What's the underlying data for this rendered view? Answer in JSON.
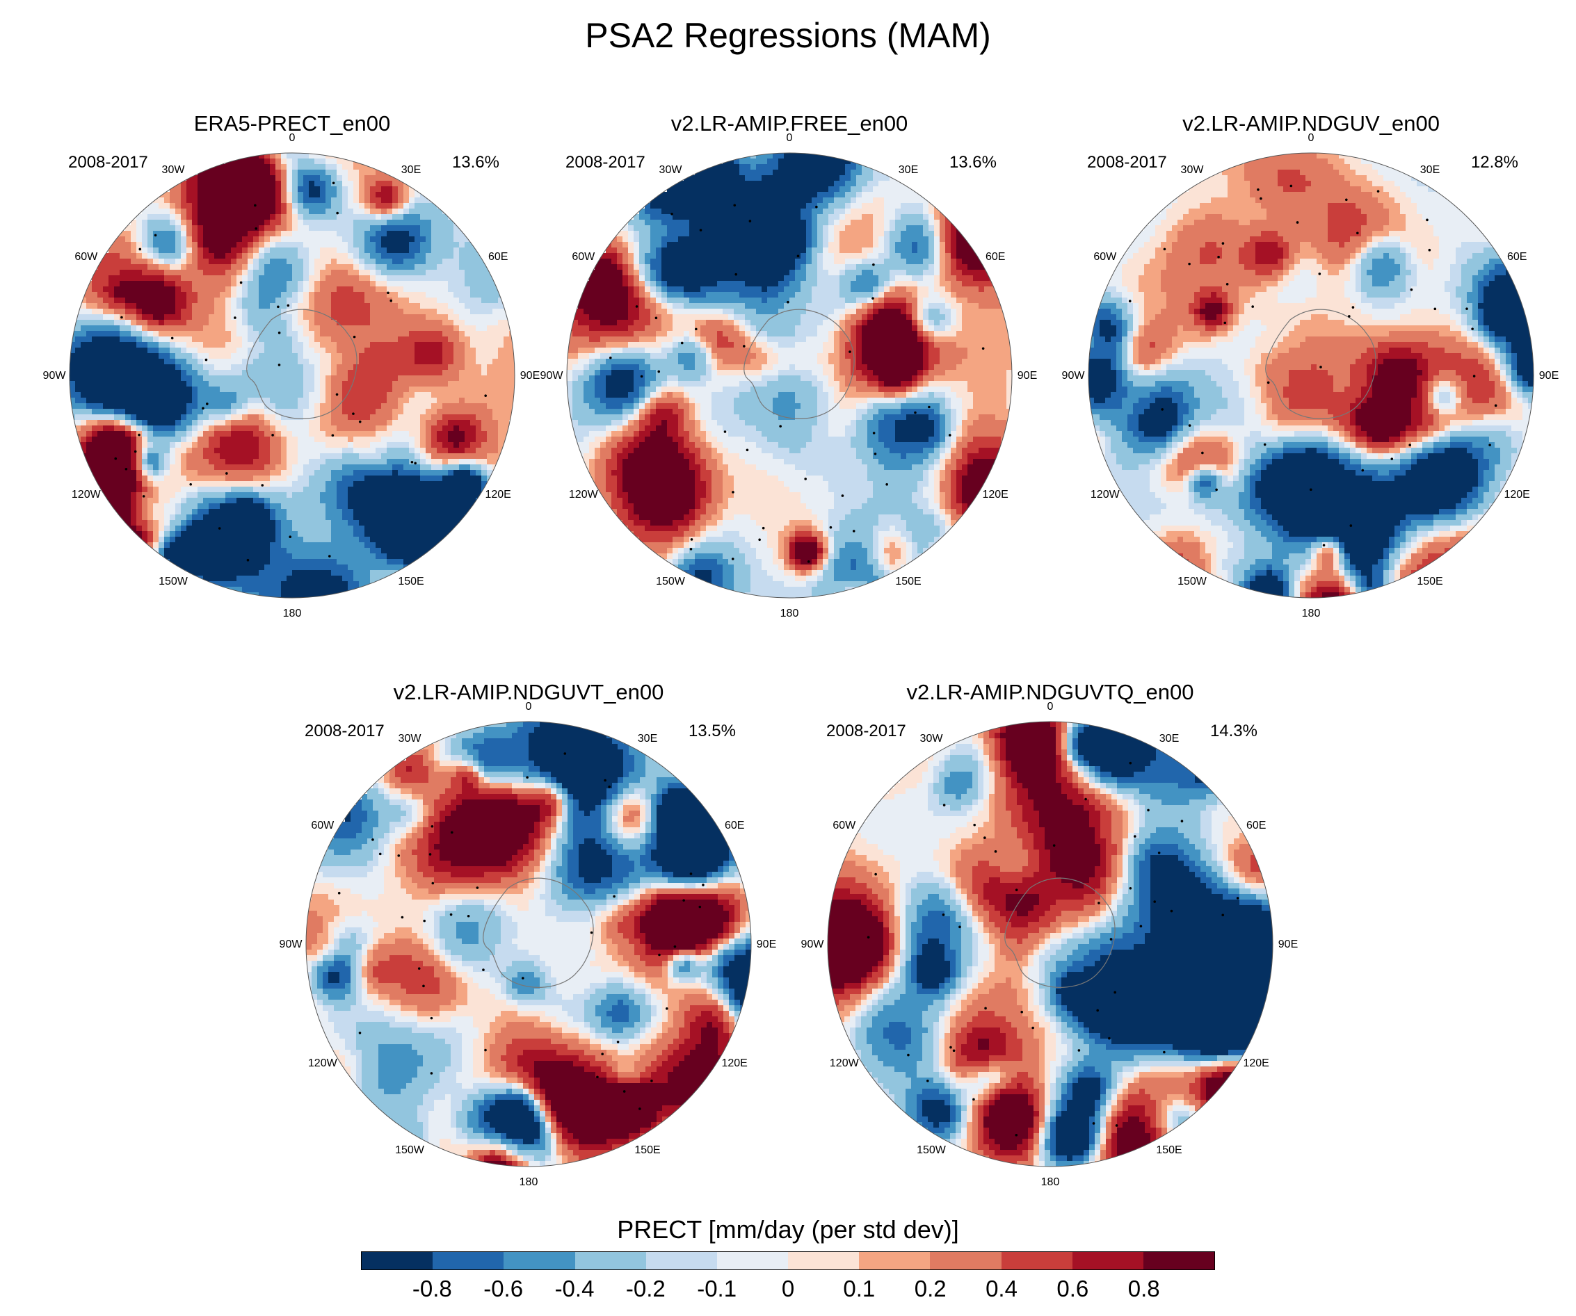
{
  "title": "PSA2 Regressions (MAM)",
  "panels": [
    {
      "name": "ERA5-PRECT_en00",
      "period": "2008-2017",
      "variance": "13.6%",
      "seed": 11
    },
    {
      "name": "v2.LR-AMIP.FREE_en00",
      "period": "2008-2017",
      "variance": "13.6%",
      "seed": 23
    },
    {
      "name": "v2.LR-AMIP.NDGUV_en00",
      "period": "2008-2017",
      "variance": "12.8%",
      "seed": 37
    },
    {
      "name": "v2.LR-AMIP.NDGUVT_en00",
      "period": "2008-2017",
      "variance": "13.5%",
      "seed": 41
    },
    {
      "name": "v2.LR-AMIP.NDGUVTQ_en00",
      "period": "2008-2017",
      "variance": "14.3%",
      "seed": 53
    }
  ],
  "longitude_labels": [
    "0",
    "30E",
    "60E",
    "90E",
    "120E",
    "150E",
    "180",
    "150W",
    "120W",
    "90W",
    "60W",
    "30W"
  ],
  "colorbar": {
    "title": "PRECT [mm/day (per std dev)]",
    "ticks": [
      "-0.8",
      "-0.6",
      "-0.4",
      "-0.2",
      "-0.1",
      "0",
      "0.1",
      "0.2",
      "0.4",
      "0.6",
      "0.8"
    ],
    "colors": [
      "#053061",
      "#2166ac",
      "#4393c3",
      "#92c5de",
      "#c6dbef",
      "#e8eef5",
      "#fbe3d6",
      "#f4a582",
      "#e07b62",
      "#c93e3b",
      "#a51125",
      "#67001f"
    ]
  }
}
